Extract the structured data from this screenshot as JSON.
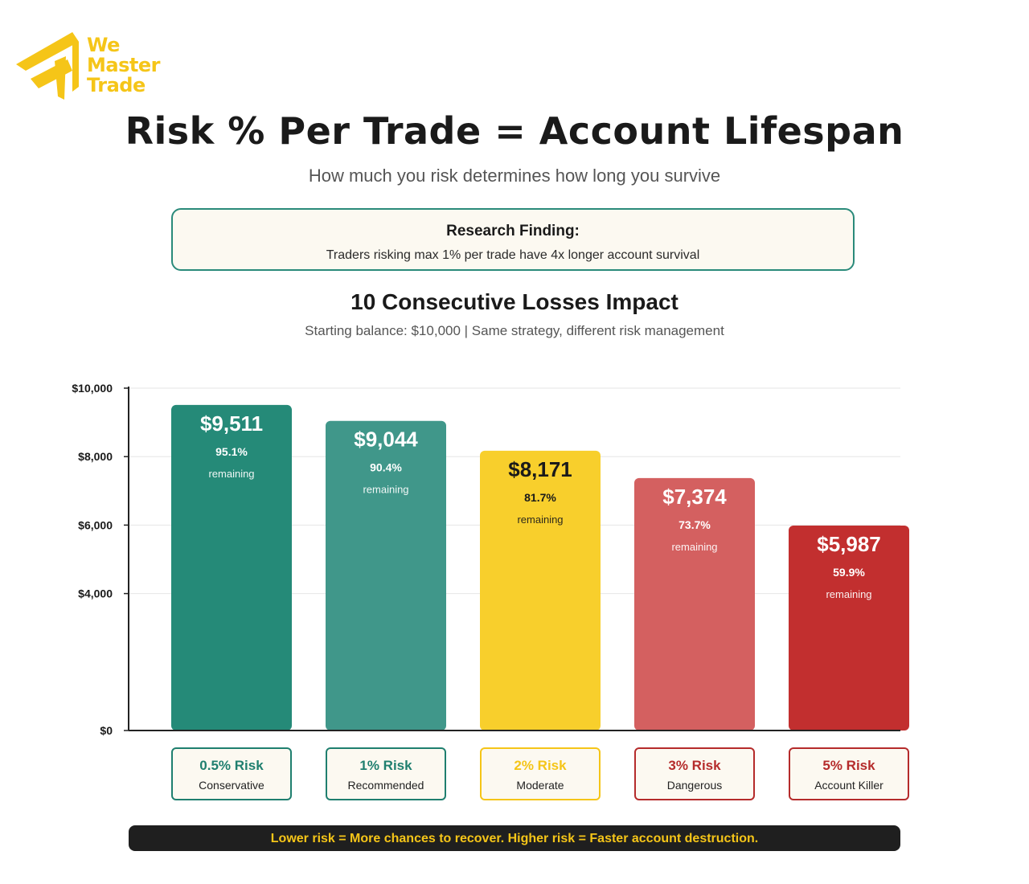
{
  "brand": {
    "name_lines": [
      "We",
      "Master",
      "Trade"
    ],
    "color": "#f5c518"
  },
  "header": {
    "title": "Risk % Per Trade = Account Lifespan",
    "subtitle": "How much you risk determines how long you survive"
  },
  "finding": {
    "title": "Research Finding:",
    "text": "Traders risking max 1% per trade have 4x longer account survival"
  },
  "chart_data": {
    "type": "bar",
    "title": "10 Consecutive Losses Impact",
    "subtitle": "Starting balance: $10,000 | Same strategy, different risk management",
    "categories": [
      "0.5% Risk",
      "1% Risk",
      "2% Risk",
      "3% Risk",
      "5% Risk"
    ],
    "descriptions": [
      "Conservative",
      "Recommended",
      "Moderate",
      "Dangerous",
      "Account Killer"
    ],
    "values": [
      9511,
      9044,
      8171,
      7374,
      5987
    ],
    "value_labels": [
      "$9,511",
      "$9,044",
      "$8,171",
      "$7,374",
      "$5,987"
    ],
    "percent_labels": [
      "95.1%",
      "90.4%",
      "81.7%",
      "73.7%",
      "59.9%"
    ],
    "remaining_label": "remaining",
    "colors": [
      "#258a78",
      "#40978a",
      "#f8cf2c",
      "#d46060",
      "#c22f2f"
    ],
    "label_text_colors": [
      "#ffffff",
      "#ffffff",
      "#1a1a1a",
      "#ffffff",
      "#ffffff"
    ],
    "category_colors": [
      "#1f7f6f",
      "#1f7f6f",
      "#f5c518",
      "#b52b2b",
      "#b52b2b"
    ],
    "yticks": [
      0,
      4000,
      6000,
      8000,
      10000
    ],
    "ytick_labels": [
      "$0",
      "$4,000",
      "$6,000",
      "$8,000",
      "$10,000"
    ],
    "ylim": [
      0,
      10000
    ],
    "grid": true,
    "xlabel": "",
    "ylabel": ""
  },
  "footer": {
    "text": "Lower risk = More chances to recover. Higher risk = Faster account destruction."
  }
}
